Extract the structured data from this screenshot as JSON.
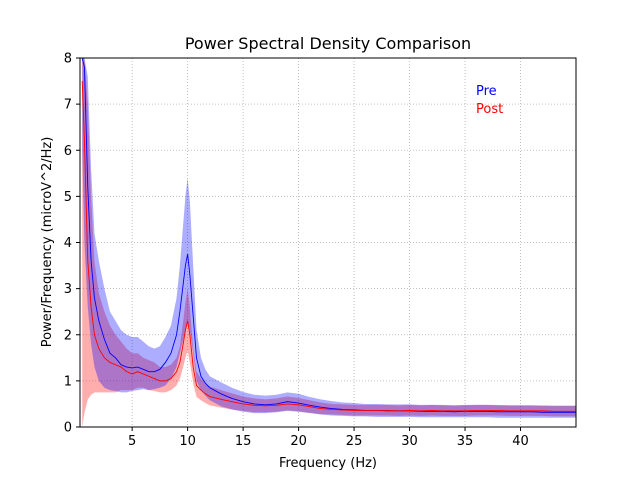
{
  "chart_data": {
    "type": "line",
    "title": "Power Spectral Density Comparison",
    "xlabel": "Frequency (Hz)",
    "ylabel": "Power/Frequency (microV^2/Hz)",
    "xlim": [
      0.3,
      45
    ],
    "ylim": [
      0,
      8
    ],
    "xticks": [
      5,
      10,
      15,
      20,
      25,
      30,
      35,
      40
    ],
    "yticks": [
      0,
      1,
      2,
      3,
      4,
      5,
      6,
      7,
      8
    ],
    "grid": true,
    "legend": "top-right",
    "series": [
      {
        "name": "Pre",
        "color": "#0000ff",
        "band_color": "#0000ff",
        "x": [
          0.5,
          0.7,
          1.0,
          1.3,
          1.6,
          2.0,
          2.5,
          3.0,
          3.5,
          4.0,
          4.5,
          5.0,
          5.5,
          6.0,
          6.5,
          7.0,
          7.5,
          8.0,
          8.5,
          9.0,
          9.3,
          9.6,
          9.8,
          10.0,
          10.2,
          10.5,
          10.8,
          11.2,
          11.6,
          12.0,
          13.0,
          14.0,
          15.0,
          16.0,
          17.0,
          18.0,
          19.0,
          20.0,
          21.0,
          22.0,
          23.0,
          24.0,
          25.0,
          26.0,
          27.0,
          28.0,
          29.0,
          30.0,
          31.0,
          32.0,
          33.0,
          34.0,
          35.0,
          36.0,
          37.0,
          38.0,
          39.0,
          40.0,
          41.0,
          42.0,
          43.0,
          44.0,
          45.0
        ],
        "values": [
          8.0,
          7.8,
          5.2,
          3.6,
          2.8,
          2.3,
          1.9,
          1.6,
          1.5,
          1.35,
          1.3,
          1.28,
          1.3,
          1.25,
          1.2,
          1.2,
          1.25,
          1.4,
          1.6,
          2.0,
          2.5,
          3.1,
          3.5,
          3.75,
          3.3,
          2.4,
          1.5,
          1.1,
          0.95,
          0.85,
          0.72,
          0.62,
          0.55,
          0.5,
          0.48,
          0.5,
          0.55,
          0.52,
          0.47,
          0.43,
          0.4,
          0.38,
          0.37,
          0.36,
          0.36,
          0.35,
          0.35,
          0.35,
          0.34,
          0.34,
          0.34,
          0.33,
          0.34,
          0.34,
          0.34,
          0.33,
          0.33,
          0.33,
          0.33,
          0.32,
          0.32,
          0.32,
          0.32
        ],
        "lower": [
          6.0,
          4.0,
          2.6,
          1.8,
          1.3,
          1.0,
          0.85,
          0.8,
          0.78,
          0.75,
          0.75,
          0.78,
          0.8,
          0.82,
          0.8,
          0.82,
          0.85,
          0.9,
          1.05,
          1.3,
          1.6,
          1.9,
          2.1,
          2.3,
          2.1,
          1.6,
          1.0,
          0.8,
          0.68,
          0.58,
          0.45,
          0.38,
          0.33,
          0.3,
          0.3,
          0.32,
          0.35,
          0.33,
          0.3,
          0.27,
          0.25,
          0.24,
          0.23,
          0.23,
          0.22,
          0.22,
          0.22,
          0.22,
          0.21,
          0.21,
          0.21,
          0.21,
          0.21,
          0.21,
          0.21,
          0.2,
          0.2,
          0.2,
          0.2,
          0.2,
          0.2,
          0.2,
          0.2
        ],
        "upper": [
          8.0,
          8.0,
          7.6,
          5.6,
          4.2,
          3.6,
          3.0,
          2.5,
          2.3,
          2.1,
          2.0,
          1.95,
          1.95,
          1.85,
          1.75,
          1.7,
          1.75,
          1.95,
          2.2,
          2.8,
          3.5,
          4.4,
          5.0,
          5.4,
          4.9,
          3.5,
          2.1,
          1.5,
          1.25,
          1.1,
          0.97,
          0.85,
          0.76,
          0.7,
          0.68,
          0.7,
          0.75,
          0.72,
          0.65,
          0.6,
          0.56,
          0.53,
          0.52,
          0.5,
          0.5,
          0.49,
          0.49,
          0.49,
          0.48,
          0.48,
          0.48,
          0.47,
          0.48,
          0.48,
          0.48,
          0.47,
          0.47,
          0.47,
          0.47,
          0.46,
          0.46,
          0.46,
          0.46
        ]
      },
      {
        "name": "Post",
        "color": "#ff0000",
        "band_color": "#ff0000",
        "x": [
          0.5,
          0.7,
          1.0,
          1.3,
          1.6,
          2.0,
          2.5,
          3.0,
          3.5,
          4.0,
          4.5,
          5.0,
          5.5,
          6.0,
          6.5,
          7.0,
          7.5,
          8.0,
          8.5,
          9.0,
          9.3,
          9.6,
          9.8,
          10.0,
          10.2,
          10.5,
          10.8,
          11.2,
          11.6,
          12.0,
          13.0,
          14.0,
          15.0,
          16.0,
          17.0,
          18.0,
          19.0,
          20.0,
          21.0,
          22.0,
          23.0,
          24.0,
          25.0,
          26.0,
          27.0,
          28.0,
          29.0,
          30.0,
          31.0,
          32.0,
          33.0,
          34.0,
          35.0,
          36.0,
          37.0,
          38.0,
          39.0,
          40.0,
          41.0,
          42.0,
          43.0,
          44.0,
          45.0
        ],
        "values": [
          7.5,
          6.2,
          3.6,
          2.6,
          2.0,
          1.7,
          1.5,
          1.4,
          1.35,
          1.3,
          1.2,
          1.15,
          1.2,
          1.15,
          1.1,
          1.05,
          1.0,
          1.0,
          1.05,
          1.2,
          1.4,
          1.8,
          2.1,
          2.3,
          2.0,
          1.3,
          0.9,
          0.8,
          0.72,
          0.66,
          0.6,
          0.55,
          0.5,
          0.47,
          0.46,
          0.47,
          0.5,
          0.48,
          0.44,
          0.4,
          0.38,
          0.37,
          0.36,
          0.36,
          0.36,
          0.36,
          0.35,
          0.36,
          0.35,
          0.36,
          0.35,
          0.35,
          0.35,
          0.36,
          0.36,
          0.36,
          0.35,
          0.35,
          0.35,
          0.35,
          0.34,
          0.34,
          0.34
        ],
        "lower": [
          0.0,
          0.3,
          0.6,
          0.7,
          0.75,
          0.75,
          0.75,
          0.75,
          0.75,
          0.8,
          0.8,
          0.8,
          0.85,
          0.85,
          0.8,
          0.78,
          0.75,
          0.75,
          0.8,
          0.9,
          1.05,
          1.3,
          1.5,
          1.65,
          1.4,
          0.95,
          0.65,
          0.58,
          0.52,
          0.47,
          0.42,
          0.38,
          0.35,
          0.32,
          0.32,
          0.33,
          0.36,
          0.34,
          0.31,
          0.28,
          0.27,
          0.26,
          0.25,
          0.25,
          0.25,
          0.25,
          0.24,
          0.25,
          0.24,
          0.25,
          0.24,
          0.24,
          0.24,
          0.25,
          0.25,
          0.25,
          0.24,
          0.24,
          0.24,
          0.24,
          0.23,
          0.23,
          0.23
        ],
        "upper": [
          8.0,
          8.0,
          7.0,
          5.0,
          3.6,
          2.9,
          2.5,
          2.2,
          2.0,
          1.85,
          1.7,
          1.6,
          1.6,
          1.5,
          1.45,
          1.4,
          1.3,
          1.3,
          1.35,
          1.5,
          1.75,
          2.3,
          2.7,
          3.0,
          2.6,
          1.7,
          1.2,
          1.05,
          0.95,
          0.88,
          0.8,
          0.73,
          0.66,
          0.62,
          0.6,
          0.62,
          0.66,
          0.63,
          0.58,
          0.53,
          0.5,
          0.49,
          0.48,
          0.48,
          0.48,
          0.48,
          0.47,
          0.48,
          0.47,
          0.48,
          0.47,
          0.47,
          0.47,
          0.48,
          0.48,
          0.48,
          0.47,
          0.47,
          0.47,
          0.47,
          0.46,
          0.46,
          0.46
        ]
      }
    ]
  }
}
